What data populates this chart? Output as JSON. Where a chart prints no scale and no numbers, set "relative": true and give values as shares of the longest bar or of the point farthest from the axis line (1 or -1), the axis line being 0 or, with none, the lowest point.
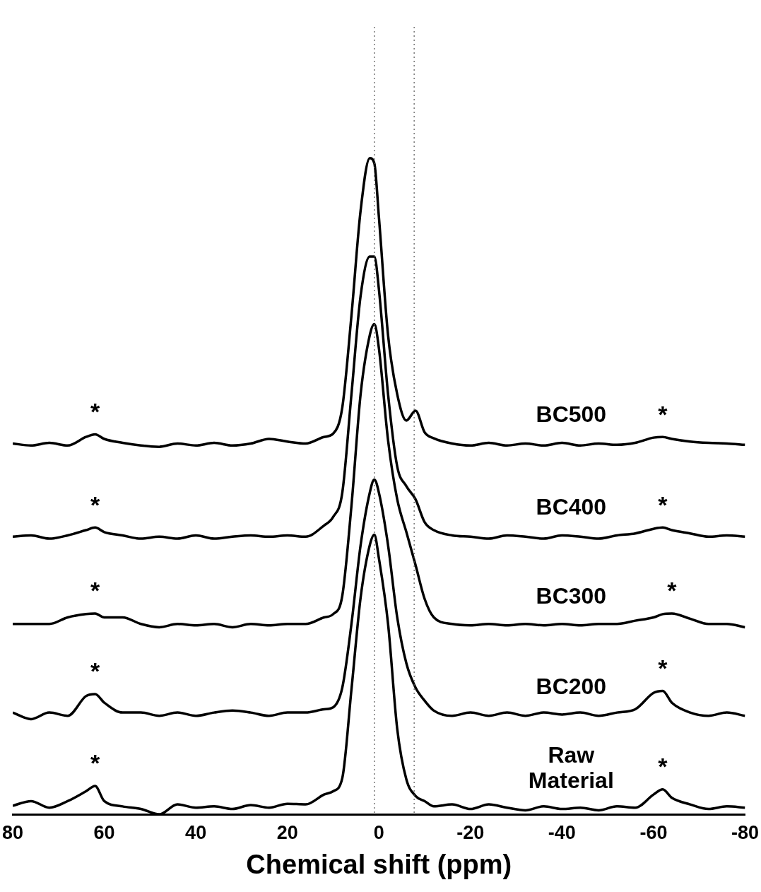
{
  "chart_data": {
    "type": "line",
    "relative": true,
    "xlabel": "Chemical shift (ppm)",
    "xlim": [
      80,
      -80
    ],
    "xticks": [
      80,
      60,
      40,
      20,
      0,
      -20,
      -40,
      -60,
      -80
    ],
    "grid": false,
    "legend": false,
    "marker": "none",
    "line_style": "solid",
    "x": [
      80,
      76,
      72,
      68,
      64,
      62,
      60,
      56,
      52,
      48,
      44,
      40,
      36,
      32,
      28,
      24,
      20,
      16,
      12,
      10,
      8,
      6,
      4,
      2,
      1,
      0,
      -2,
      -4,
      -6,
      -8,
      -10,
      -12,
      -16,
      -20,
      -24,
      -28,
      -32,
      -36,
      -40,
      -44,
      -48,
      -52,
      -56,
      -60,
      -62,
      -64,
      -68,
      -72,
      -76,
      -80
    ],
    "series": [
      {
        "name": "BC500",
        "color": "#000000",
        "values": [
          0.565,
          0.562,
          0.566,
          0.562,
          0.575,
          0.579,
          0.572,
          0.566,
          0.562,
          0.56,
          0.565,
          0.562,
          0.566,
          0.562,
          0.565,
          0.572,
          0.568,
          0.565,
          0.575,
          0.58,
          0.62,
          0.76,
          0.92,
          1,
          0.992,
          0.91,
          0.73,
          0.64,
          0.6,
          0.615,
          0.582,
          0.573,
          0.565,
          0.562,
          0.566,
          0.562,
          0.565,
          0.562,
          0.566,
          0.562,
          0.565,
          0.563,
          0.566,
          0.574,
          0.575,
          0.572,
          0.568,
          0.566,
          0.565,
          0.563
        ]
      },
      {
        "name": "BC400",
        "color": "#000000",
        "values": [
          0.423,
          0.425,
          0.42,
          0.425,
          0.433,
          0.437,
          0.43,
          0.425,
          0.42,
          0.423,
          0.42,
          0.425,
          0.42,
          0.423,
          0.425,
          0.423,
          0.425,
          0.423,
          0.44,
          0.453,
          0.49,
          0.64,
          0.79,
          0.85,
          0.85,
          0.8,
          0.64,
          0.53,
          0.5,
          0.48,
          0.445,
          0.433,
          0.425,
          0.423,
          0.42,
          0.425,
          0.423,
          0.42,
          0.425,
          0.423,
          0.42,
          0.425,
          0.428,
          0.435,
          0.437,
          0.433,
          0.428,
          0.423,
          0.425,
          0.423
        ]
      },
      {
        "name": "BC300",
        "color": "#000000",
        "values": [
          0.29,
          0.29,
          0.29,
          0.3,
          0.305,
          0.306,
          0.3,
          0.3,
          0.29,
          0.285,
          0.29,
          0.288,
          0.29,
          0.285,
          0.29,
          0.288,
          0.29,
          0.29,
          0.3,
          0.305,
          0.333,
          0.47,
          0.64,
          0.73,
          0.747,
          0.71,
          0.57,
          0.48,
          0.43,
          0.38,
          0.328,
          0.3,
          0.29,
          0.288,
          0.29,
          0.288,
          0.29,
          0.288,
          0.29,
          0.288,
          0.29,
          0.29,
          0.295,
          0.3,
          0.305,
          0.306,
          0.298,
          0.29,
          0.29,
          0.285
        ]
      },
      {
        "name": "Raw Material",
        "color": "#000000",
        "values": [
          0.013,
          0.02,
          0.01,
          0.02,
          0.035,
          0.043,
          0.02,
          0.012,
          0.008,
          0,
          0.015,
          0.01,
          0.012,
          0.008,
          0.014,
          0.01,
          0.016,
          0.015,
          0.03,
          0.035,
          0.055,
          0.19,
          0.33,
          0.41,
          0.426,
          0.39,
          0.29,
          0.13,
          0.053,
          0.028,
          0.02,
          0.012,
          0.015,
          0.008,
          0.015,
          0.01,
          0.006,
          0.012,
          0.008,
          0.01,
          0.006,
          0.012,
          0.01,
          0.03,
          0.038,
          0.025,
          0.015,
          0.008,
          0.012,
          0.01
        ]
      },
      {
        "name": "BC200",
        "color": "#000000",
        "values": [
          0.155,
          0.145,
          0.155,
          0.15,
          0.18,
          0.183,
          0.17,
          0.155,
          0.155,
          0.15,
          0.155,
          0.15,
          0.155,
          0.158,
          0.155,
          0.15,
          0.155,
          0.155,
          0.16,
          0.163,
          0.193,
          0.29,
          0.41,
          0.49,
          0.51,
          0.49,
          0.41,
          0.3,
          0.23,
          0.193,
          0.173,
          0.158,
          0.15,
          0.155,
          0.15,
          0.155,
          0.15,
          0.155,
          0.152,
          0.155,
          0.15,
          0.155,
          0.16,
          0.185,
          0.188,
          0.17,
          0.155,
          0.15,
          0.155,
          0.15
        ]
      }
    ],
    "ref_lines": [
      {
        "axis": "x",
        "value": 1,
        "color": "#555555",
        "line_style": "dotted"
      },
      {
        "axis": "x",
        "value": -7.7,
        "color": "#555555",
        "line_style": "dotted"
      }
    ],
    "annotations": [
      {
        "text": "*",
        "x": 62,
        "y": 0.579
      },
      {
        "text": "*",
        "x": -62,
        "y": 0.575
      },
      {
        "text": "*",
        "x": 62,
        "y": 0.437
      },
      {
        "text": "*",
        "x": -62,
        "y": 0.437
      },
      {
        "text": "*",
        "x": 62,
        "y": 0.306
      },
      {
        "text": "*",
        "x": -64,
        "y": 0.306
      },
      {
        "text": "*",
        "x": 62,
        "y": 0.183
      },
      {
        "text": "*",
        "x": -62,
        "y": 0.188
      },
      {
        "text": "*",
        "x": 62,
        "y": 0.043
      },
      {
        "text": "*",
        "x": -62,
        "y": 0.038
      }
    ]
  }
}
